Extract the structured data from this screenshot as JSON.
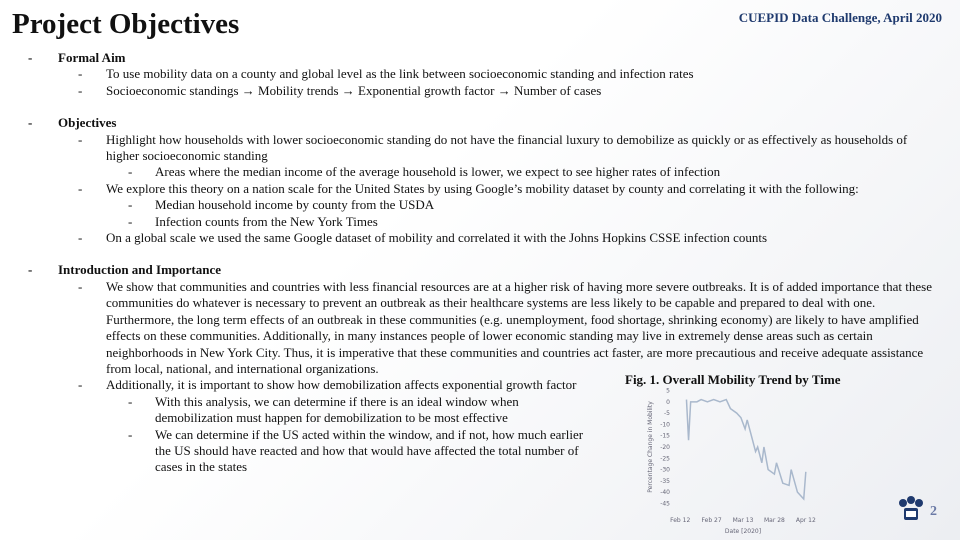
{
  "header": {
    "title": "Project Objectives",
    "event": "CUEPID Data Challenge, April 2020"
  },
  "sections": [
    {
      "heading": "Formal Aim",
      "items": [
        {
          "text": "To use mobility data on a county and global level as the link between socioeconomic standing and infection rates"
        },
        {
          "text": "Socioeconomic standings → Mobility trends → Exponential growth factor → Number of cases"
        }
      ]
    },
    {
      "heading": "Objectives",
      "items": [
        {
          "text": "Highlight how households with lower socioeconomic standing do not have the financial luxury to demobilize as quickly or as effectively as households of higher socioeconomic standing",
          "subitems": [
            "Areas where the median income of the average household is lower, we expect to see higher rates of infection"
          ]
        },
        {
          "text": "We explore this theory on a nation scale for the United States by using Google’s mobility dataset by county and correlating it with the following:",
          "subitems": [
            "Median household income by county from the USDA",
            "Infection counts from the New York Times"
          ]
        },
        {
          "text": "On a global scale we used the same Google dataset of mobility and correlated it with the Johns Hopkins CSSE infection counts"
        }
      ]
    },
    {
      "heading": "Introduction and Importance",
      "items": [
        {
          "text": "We show that communities and countries with less financial resources are at a higher risk of having more severe outbreaks. It is of added importance that these communities do whatever is necessary to prevent an outbreak as their healthcare systems are less likely to be capable and prepared to deal with one. Furthermore, the long term effects of an outbreak in these communities (e.g. unemployment, food shortage, shrinking economy) are likely to have amplified effects on these communities. Additionally, in many instances people of lower economic standing may live in extremely dense areas such as certain neighborhoods in New York City. Thus, it is imperative that these communities and countries act faster, are more precautious and receive adequate assistance from local, national, and international organizations."
        },
        {
          "text": "Additionally, it is important to show how demobilization affects exponential growth factor",
          "subitems": [
            "With this analysis, we can determine if there is an ideal window when demobilization must happen for demobilization to be most effective",
            "We can determine if the US acted within the window, and if not, how much earlier the US should have reacted and how that would have affected the total number of cases in the states"
          ]
        }
      ]
    }
  ],
  "figure": {
    "caption": "Fig. 1. Overall Mobility Trend by Time",
    "chart_data": {
      "type": "line",
      "x_label": "Date [2020]",
      "y_label": "Percentage Change in Mobility",
      "x": [
        "Feb 15",
        "Feb 16",
        "Feb 17",
        "Feb 20",
        "Feb 22",
        "Feb 25",
        "Feb 28",
        "Mar 2",
        "Mar 5",
        "Mar 7",
        "Mar 10",
        "Mar 12",
        "Mar 14",
        "Mar 15",
        "Mar 17",
        "Mar 19",
        "Mar 20",
        "Mar 22",
        "Mar 23",
        "Mar 25",
        "Mar 28",
        "Mar 29",
        "Apr 1",
        "Apr 4",
        "Apr 5",
        "Apr 8",
        "Apr 11",
        "Apr 12"
      ],
      "series": [
        {
          "name": "Mobility",
          "color": "#a9b8cc",
          "values": [
            1,
            -17,
            0,
            0,
            1,
            0,
            1,
            0,
            1,
            -3,
            -5,
            -7,
            -12,
            -8,
            -15,
            -22,
            -20,
            -27,
            -20,
            -30,
            -32,
            -27,
            -36,
            -37,
            -30,
            -40,
            -43,
            -31
          ]
        }
      ],
      "xlim": [
        "Feb 10",
        "Apr 14"
      ],
      "xticks": [
        "Feb 12",
        "Feb 27",
        "Mar 13",
        "Mar 28",
        "Apr 12"
      ],
      "ylim": [
        -47,
        7
      ],
      "yticks": [
        5,
        0,
        -5,
        -10,
        -15,
        -20,
        -25,
        -30,
        -35,
        -40,
        -45
      ]
    }
  },
  "page_number": "2"
}
